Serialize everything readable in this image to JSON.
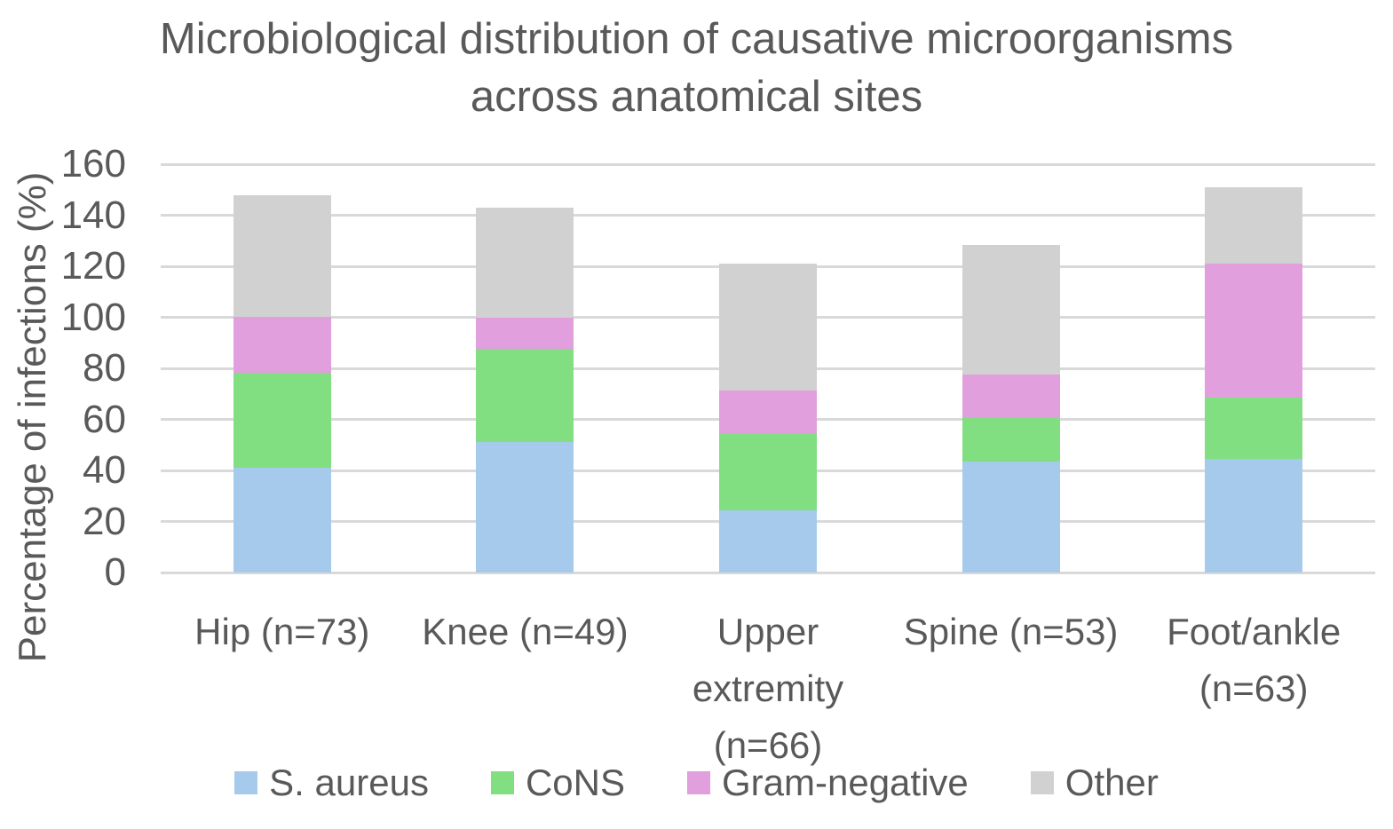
{
  "title": {
    "line1": "Microbiological distribution of causative microorganisms",
    "line2": "across anatomical sites"
  },
  "y_axis": {
    "label": "Percentage of infections (%)",
    "ticks": [
      0,
      20,
      40,
      60,
      80,
      100,
      120,
      140,
      160
    ],
    "max": 160
  },
  "colors": {
    "text": "#595959",
    "gridline": "#D9D9D9",
    "background": "#FFFFFF"
  },
  "chart_data": {
    "type": "bar",
    "stacked": true,
    "title": "Microbiological distribution of causative microorganisms across anatomical sites",
    "xlabel": "",
    "ylabel": "Percentage of infections (%)",
    "ylim": [
      0,
      160
    ],
    "ytick_step": 20,
    "grid": "horizontal",
    "legend_position": "bottom",
    "categories": [
      "Hip (n=73)",
      "Knee (n=49)",
      "Upper extremity (n=66)",
      "Spine (n=53)",
      "Foot/ankle (n=63)"
    ],
    "series": [
      {
        "name": "S. aureus",
        "color": "#A6CAEC",
        "values": [
          41.1,
          51.0,
          24.2,
          43.4,
          44.4
        ]
      },
      {
        "name": "CoNS",
        "color": "#81DF81",
        "values": [
          37.0,
          36.7,
          30.3,
          17.0,
          24.2
        ]
      },
      {
        "name": "Gram-negative",
        "color": "#E19FDD",
        "values": [
          21.9,
          12.2,
          16.7,
          17.0,
          52.4
        ]
      },
      {
        "name": "Other",
        "color": "#D1D1D1",
        "values": [
          47.9,
          42.9,
          50.0,
          50.9,
          29.8
        ]
      }
    ],
    "stacked_totals": [
      147.9,
      142.8,
      121.2,
      128.3,
      150.8
    ]
  }
}
